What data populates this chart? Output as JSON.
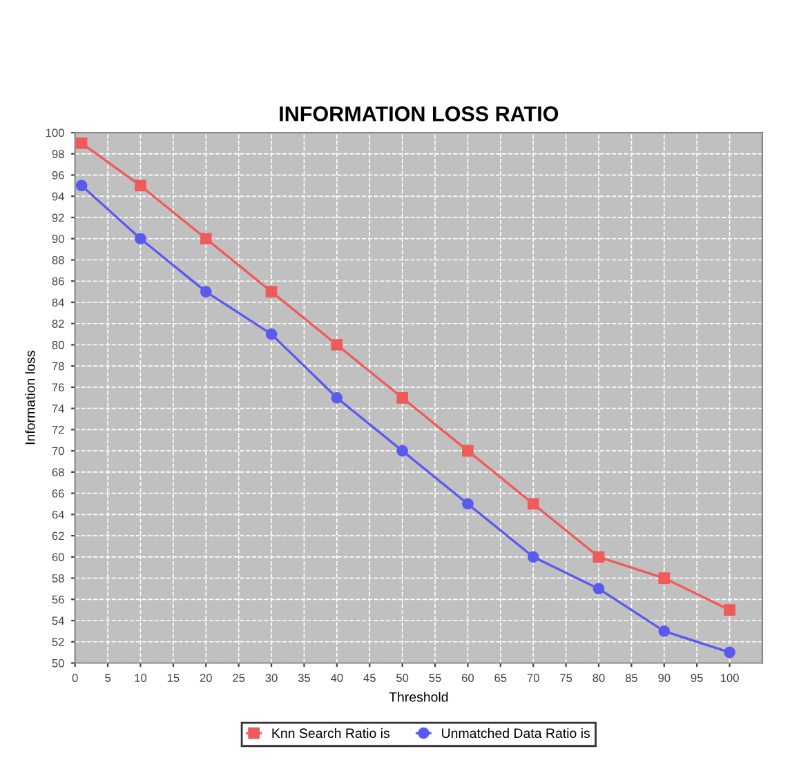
{
  "chart_data": {
    "type": "line",
    "title": "INFORMATION LOSS RATIO",
    "xlabel": "Threshold",
    "ylabel": "Information loss",
    "x": [
      1,
      10,
      20,
      30,
      40,
      50,
      60,
      70,
      80,
      90,
      100
    ],
    "series": [
      {
        "name": "Knn Search Ratio is",
        "color": "#f05a5a",
        "marker": "square",
        "values": [
          99,
          95,
          90,
          85,
          80,
          75,
          70,
          65,
          60,
          58,
          55
        ]
      },
      {
        "name": "Unmatched Data Ratio is",
        "color": "#5a5af0",
        "marker": "circle",
        "values": [
          95,
          90,
          85,
          81,
          75,
          70,
          65,
          60,
          57,
          53,
          51
        ]
      }
    ],
    "xlim": [
      0,
      105
    ],
    "xticks": [
      0,
      5,
      10,
      15,
      20,
      25,
      30,
      35,
      40,
      45,
      50,
      55,
      60,
      65,
      70,
      75,
      80,
      85,
      90,
      95,
      100
    ],
    "ylim": [
      50,
      100
    ],
    "yticks": [
      50,
      52,
      54,
      56,
      58,
      60,
      62,
      64,
      66,
      68,
      70,
      72,
      74,
      76,
      78,
      80,
      82,
      84,
      86,
      88,
      90,
      92,
      94,
      96,
      98,
      100
    ],
    "grid": true,
    "legend": "bottom"
  }
}
